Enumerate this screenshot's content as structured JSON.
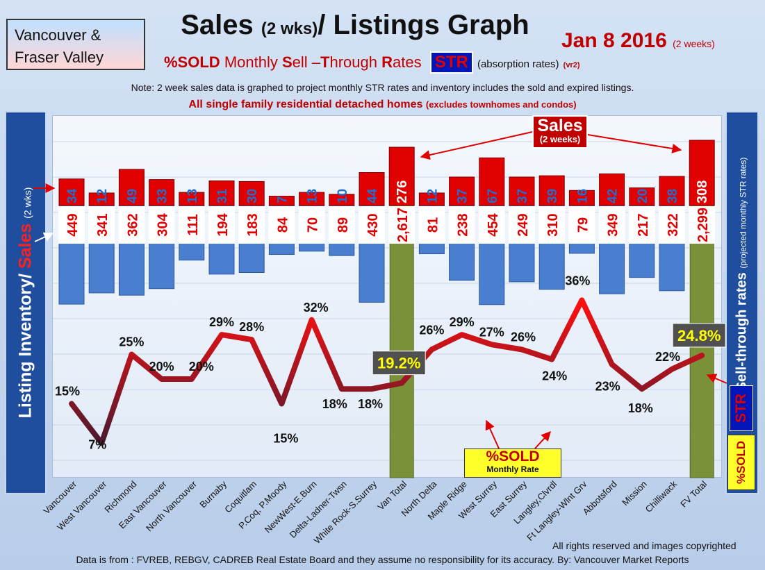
{
  "header": {
    "region_line1": "Vancouver &",
    "region_line2": "Fraser Valley",
    "title_main": "Sales",
    "title_small": "(2 wks)",
    "title_rest": "/ Listings Graph",
    "date": "Jan 8 2016",
    "date_note": "(2 weeks)",
    "sub_sold": "%SOLD",
    "sub_monthly": "Monthly",
    "sub_s": "S",
    "sub_ell": "ell –",
    "sub_t": "T",
    "sub_hrough": "hrough",
    "sub_r": "R",
    "sub_ates": "ates",
    "str_badge": "STR",
    "absorption": "(absorption rates)",
    "version": "(vr2)",
    "note": "Note: 2 week sales data is graphed to project monthly STR rates and inventory includes the sold and expired listings.",
    "single_main": "All single family residential detached homes",
    "single_small": "(excludes townhomes and condos)"
  },
  "axis": {
    "left_inventory": "Listing Inventory/",
    "left_sales": "Sales",
    "left_wks": "(2 wks)",
    "right_main": "Sell-through rates",
    "right_small": "(projected monthly STR rates)",
    "right_str": "STR",
    "right_sold": "%SOLD"
  },
  "callouts": {
    "sales_main": "Sales",
    "sales_sub": "(2 weeks)",
    "sold_main": "%SOLD",
    "sold_sub": "Monthly Rate",
    "van_total_label": "19.2%",
    "fv_total_label": "24.8%"
  },
  "footer": {
    "copyright": "All rights reserved and  images copyrighted",
    "source": "Data is from : FVREB, REBGV, CADREB Real Estate Board and they assume no responsibility  for its accuracy. By: Vancouver Market Reports"
  },
  "colors": {
    "sales_bar": "#e00000",
    "listing_bar": "#4a7fcf",
    "total_bar": "#7a913a",
    "str_line": "#d81010"
  },
  "chart_data": {
    "type": "bar",
    "categories": [
      "Vancouver",
      "West Vancouver",
      "Richmond",
      "East Vancouver",
      "North Vancouver",
      "Burnaby",
      "Coquitlam",
      "P.Coq, P.Moody",
      "NewWest-E.Burn",
      "Delta-Ladner-Twsn",
      "White Rock-S.Surrey",
      "Van Total",
      "North Delta",
      "Maple Ridge",
      "West Surrey",
      "East Surrey",
      "Langley,Clvrdl",
      "Ft Langley-Wlnt Grv",
      "Abbotsford",
      "Mission",
      "Chilliwack",
      "FV Total"
    ],
    "series": [
      {
        "values": [
          34,
          12,
          49,
          33,
          13,
          31,
          30,
          7,
          13,
          10,
          44,
          276,
          12,
          37,
          67,
          37,
          39,
          16,
          42,
          20,
          38,
          308
        ]
      },
      {
        "values": [
          449,
          341,
          362,
          304,
          111,
          194,
          183,
          84,
          70,
          89,
          430,
          2617,
          81,
          238,
          454,
          249,
          310,
          79,
          349,
          217,
          322,
          2299
        ]
      },
      {
        "values": [
          15,
          7,
          25,
          20,
          20,
          29,
          28,
          15,
          32,
          18,
          18,
          19.2,
          26,
          29,
          27,
          26,
          24,
          36,
          23,
          18,
          22,
          24.8
        ]
      }
    ],
    "sales_labels": [
      "34",
      "12",
      "49",
      "33",
      "13",
      "31",
      "30",
      "7",
      "13",
      "10",
      "44",
      "276",
      "12",
      "37",
      "67",
      "37",
      "39",
      "16",
      "42",
      "20",
      "38",
      "308"
    ],
    "listing_labels": [
      "449",
      "341",
      "362",
      "304",
      "111",
      "194",
      "183",
      "84",
      "70",
      "89",
      "430",
      "2,617",
      "81",
      "238",
      "454",
      "249",
      "310",
      "79",
      "349",
      "217",
      "322",
      "2,299"
    ],
    "str_labels": [
      "15%",
      "7%",
      "25%",
      "20%",
      "20%",
      "29%",
      "28%",
      "15%",
      "32%",
      "18%",
      "18%",
      "",
      "26%",
      "29%",
      "27%",
      "26%",
      "24%",
      "36%",
      "23%",
      "18%",
      "22%",
      ""
    ],
    "total_indices": [
      11,
      21
    ]
  }
}
